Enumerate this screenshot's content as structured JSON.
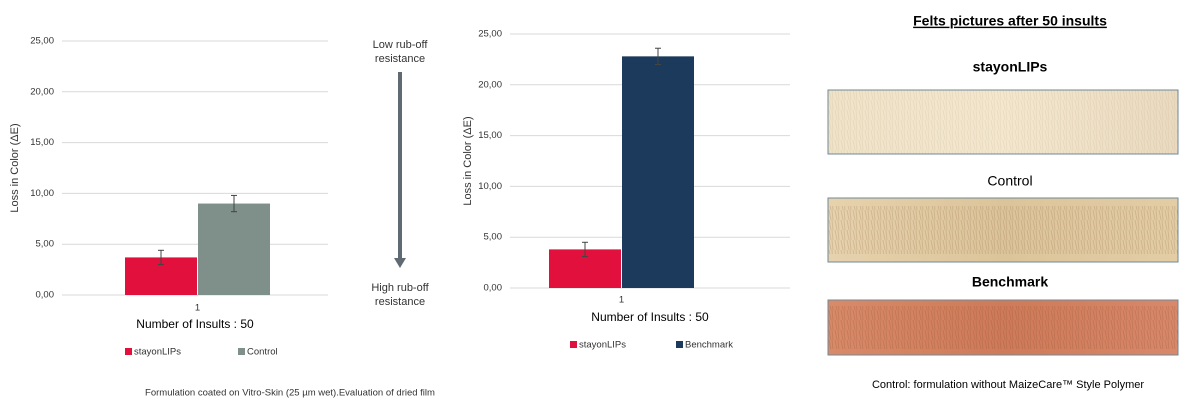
{
  "chart_data": [
    {
      "type": "bar",
      "categories": [
        "1"
      ],
      "xlabel": "Number of Insults : 50",
      "ylabel": "Loss in Color (ΔE)",
      "ylim": [
        0,
        25
      ],
      "yticks": [
        {
          "value": 0,
          "label": "0,00"
        },
        {
          "value": 5,
          "label": "5,00"
        },
        {
          "value": 10,
          "label": "10,00"
        },
        {
          "value": 15,
          "label": "15,00"
        },
        {
          "value": 20,
          "label": "20,00"
        },
        {
          "value": 25,
          "label": "25,00"
        }
      ],
      "grid": true,
      "series": [
        {
          "name": "stayonLIPs",
          "color": "#e2103c",
          "values": [
            3.7
          ],
          "errors": [
            0.7
          ]
        },
        {
          "name": "Control",
          "color": "#7f8f89",
          "values": [
            9.0
          ],
          "errors": [
            0.8
          ]
        }
      ]
    },
    {
      "type": "bar",
      "categories": [
        "1"
      ],
      "xlabel": "Number of Insults : 50",
      "ylabel": "Loss in Color (ΔE)",
      "ylim": [
        0,
        25
      ],
      "yticks": [
        {
          "value": 0,
          "label": "0,00"
        },
        {
          "value": 5,
          "label": "5,00"
        },
        {
          "value": 10,
          "label": "10,00"
        },
        {
          "value": 15,
          "label": "15,00"
        },
        {
          "value": 20,
          "label": "20,00"
        },
        {
          "value": 25,
          "label": "25,00"
        }
      ],
      "grid": true,
      "series": [
        {
          "name": "stayonLIPs",
          "color": "#e2103c",
          "values": [
            3.8
          ],
          "errors": [
            0.7
          ]
        },
        {
          "name": "Benchmark",
          "color": "#1b3a5c",
          "values": [
            22.8
          ],
          "errors": [
            0.8
          ]
        }
      ]
    }
  ],
  "arrow": {
    "top": [
      "Low rub-off",
      "resistance"
    ],
    "bottom": [
      "High rub-off",
      "resistance"
    ]
  },
  "footnote": "Formulation coated on Vitro-Skin (25 µm wet).Evaluation of dried film",
  "felts": {
    "title": "Felts pictures after 50 insults",
    "labels": [
      "stayonLIPs",
      "Control",
      "Benchmark"
    ],
    "note": "Control: formulation without MaizeCare™ Style Polymer"
  }
}
